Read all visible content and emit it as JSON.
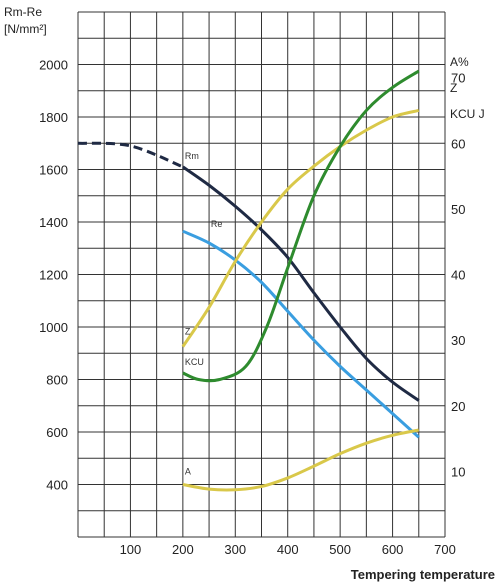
{
  "chart_data": {
    "type": "line",
    "xlabel": "Tempering temperature",
    "x_ticks": [
      100,
      200,
      300,
      400,
      500,
      600,
      700
    ],
    "xlim": [
      0,
      700
    ],
    "left_axis": {
      "label_line1": "Rm-Re",
      "label_line2": "[N/mm²]",
      "ticks": [
        400,
        600,
        800,
        1000,
        1200,
        1400,
        1600,
        1800,
        2000
      ],
      "ylim": [
        200,
        2200
      ]
    },
    "right_axis": {
      "labels": [
        "A%",
        "Z",
        "KCU J"
      ],
      "ticks": [
        10,
        20,
        30,
        40,
        50,
        60,
        70
      ],
      "ylim": [
        0,
        80
      ]
    },
    "grid": true,
    "colors": {
      "Rm": "#1f2a44",
      "Re": "#3a9ee0",
      "Z": "#d9c84a",
      "KCU": "#2e8b2e",
      "A": "#d9c84a",
      "grid": "#333333"
    },
    "series": [
      {
        "name": "Rm",
        "axis": "left",
        "dashed_until": 200,
        "x": [
          0,
          100,
          200,
          250,
          300,
          350,
          400,
          450,
          500,
          550,
          600,
          650
        ],
        "y": [
          1700,
          1690,
          1610,
          1540,
          1460,
          1370,
          1265,
          1130,
          1000,
          880,
          790,
          720
        ]
      },
      {
        "name": "Re",
        "axis": "left",
        "x": [
          200,
          250,
          300,
          350,
          400,
          450,
          500,
          550,
          600,
          650
        ],
        "y": [
          1365,
          1320,
          1255,
          1170,
          1060,
          950,
          850,
          760,
          670,
          580
        ]
      },
      {
        "name": "Z",
        "axis": "right",
        "x": [
          200,
          250,
          300,
          350,
          400,
          450,
          500,
          550,
          600,
          650
        ],
        "y": [
          29,
          35,
          42,
          48,
          53,
          56.5,
          59.5,
          62,
          64,
          65
        ]
      },
      {
        "name": "KCU",
        "axis": "right",
        "x": [
          200,
          230,
          270,
          320,
          360,
          400,
          450,
          500,
          550,
          600,
          650
        ],
        "y": [
          25,
          24,
          24,
          26,
          32,
          41,
          52,
          59.5,
          65,
          68.5,
          71
        ]
      },
      {
        "name": "A",
        "axis": "right",
        "x": [
          200,
          250,
          300,
          350,
          400,
          450,
          500,
          550,
          600,
          650
        ],
        "y": [
          8,
          7.3,
          7.2,
          7.7,
          9,
          10.8,
          12.7,
          14.3,
          15.5,
          16.3
        ]
      }
    ]
  }
}
